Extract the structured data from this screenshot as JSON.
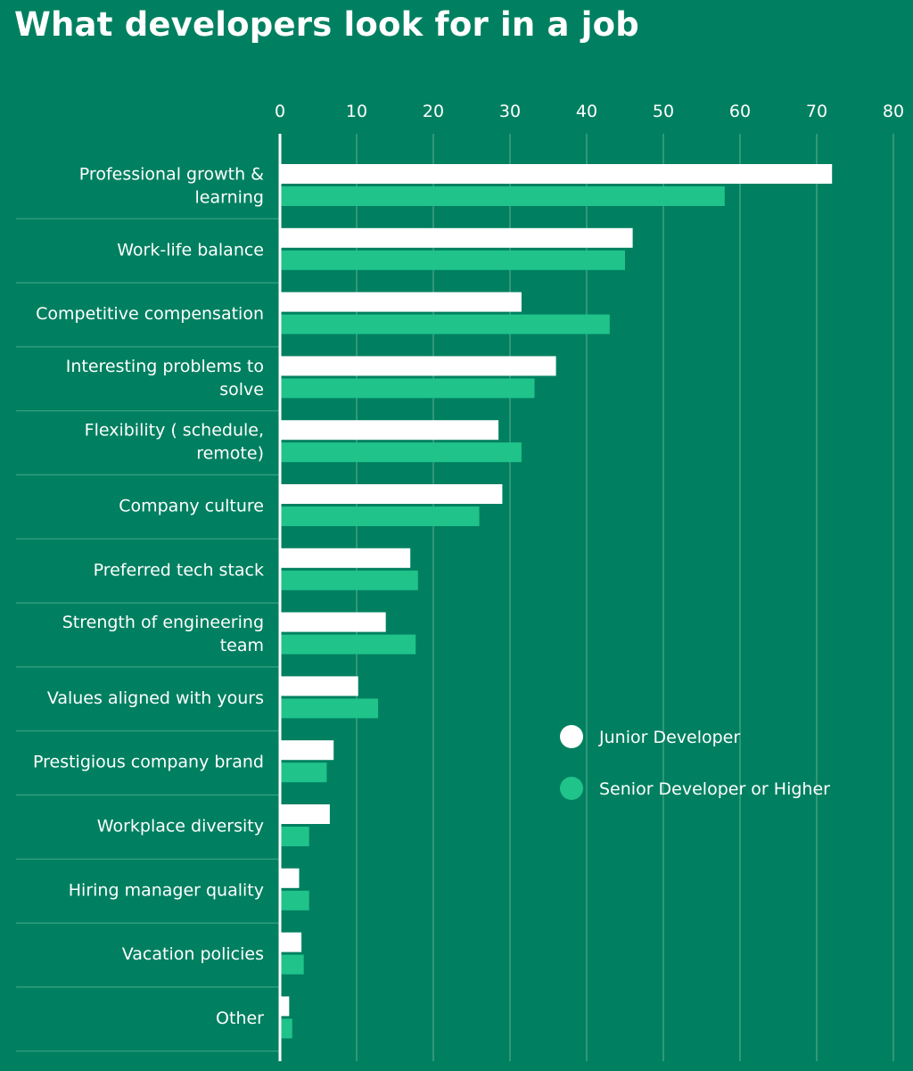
{
  "chart_data": {
    "type": "bar",
    "orientation": "horizontal",
    "title": "What developers look for in a job",
    "xlabel": "",
    "ylabel": "",
    "xlim": [
      0,
      80
    ],
    "x_ticks": [
      0,
      10,
      20,
      30,
      40,
      50,
      60,
      70,
      80
    ],
    "grid": true,
    "legend_position": "right",
    "categories": [
      [
        "Professional growth &",
        "learning"
      ],
      [
        "Work-life balance"
      ],
      [
        "Competitive compensation"
      ],
      [
        "Interesting problems to",
        "solve"
      ],
      [
        "Flexibility ( schedule,",
        "remote)"
      ],
      [
        "Company culture"
      ],
      [
        "Preferred tech stack"
      ],
      [
        "Strength of engineering",
        "team"
      ],
      [
        "Values aligned with yours"
      ],
      [
        "Prestigious company brand"
      ],
      [
        "Workplace diversity"
      ],
      [
        "Hiring manager quality"
      ],
      [
        "Vacation policies"
      ],
      [
        "Other"
      ]
    ],
    "series": [
      {
        "name": "Junior Developer",
        "color": "#ffffff",
        "values": [
          72,
          46,
          31.5,
          36,
          28.5,
          29,
          17,
          13.8,
          10.2,
          7,
          6.5,
          2.5,
          2.8,
          1.2
        ]
      },
      {
        "name": "Senior Developer or Higher",
        "color": "#20c38a",
        "values": [
          58,
          45,
          43,
          33.2,
          31.5,
          26,
          18,
          17.7,
          12.8,
          6.1,
          3.8,
          3.8,
          3.1,
          1.6
        ]
      }
    ],
    "colors": {
      "background": "#008060",
      "grid": "#4fa98a",
      "separator": "#3aa383",
      "axis": "#ffffff"
    }
  }
}
